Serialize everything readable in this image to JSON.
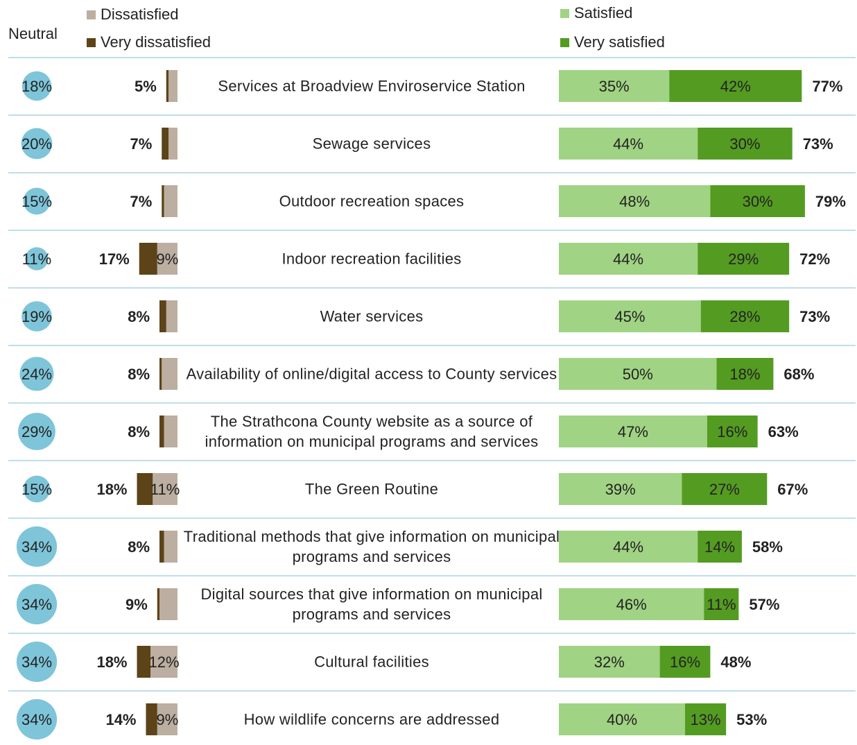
{
  "chart_data": {
    "type": "diverging_bar",
    "categories": [
      "Services at Broadview Enviroservice Station",
      "Sewage services",
      "Outdoor recreation spaces",
      "Indoor recreation facilities",
      "Water services",
      "Availability of online/digital access to County services",
      "The Strathcona County website as a source of information on municipal programs and services",
      "The Green Routine",
      "Traditional methods that give information on municipal programs and services",
      "Digital sources that give information on municipal programs and services",
      "Cultural facilities",
      "How wildlife concerns are addressed"
    ],
    "series": [
      {
        "name": "Neutral",
        "color": "#7ec5d9",
        "values": [
          18,
          20,
          15,
          11,
          19,
          24,
          29,
          15,
          34,
          34,
          34,
          34
        ],
        "value_labels": [
          "18%",
          "20%",
          "15%",
          "11%",
          "19%",
          "24%",
          "29%",
          "15%",
          "34%",
          "34%",
          "34%",
          "34%"
        ]
      },
      {
        "name": "Dissatisfied",
        "color": "#bcaea0",
        "values": [
          4,
          4,
          6,
          9,
          5,
          7,
          6,
          11,
          6,
          8,
          12,
          9
        ],
        "value_labels": [
          null,
          null,
          null,
          "9%",
          null,
          null,
          null,
          "11%",
          null,
          null,
          "12%",
          "9%"
        ]
      },
      {
        "name": "Very dissatisfied",
        "color": "#5c4318",
        "values": [
          1,
          3,
          1,
          8,
          3,
          1,
          2,
          7,
          2,
          1,
          6,
          5
        ]
      },
      {
        "name": "Satisfied",
        "color": "#a0d383",
        "values": [
          35,
          44,
          48,
          44,
          45,
          50,
          47,
          39,
          44,
          46,
          32,
          40
        ],
        "value_labels": [
          "35%",
          "44%",
          "48%",
          "44%",
          "45%",
          "50%",
          "47%",
          "39%",
          "44%",
          "46%",
          "32%",
          "40%"
        ]
      },
      {
        "name": "Very satisfied",
        "color": "#549b22",
        "values": [
          42,
          30,
          30,
          29,
          28,
          18,
          16,
          27,
          14,
          11,
          16,
          13
        ],
        "value_labels": [
          "42%",
          "30%",
          "30%",
          "29%",
          "28%",
          "18%",
          "16%",
          "27%",
          "14%",
          "11%",
          "16%",
          "13%"
        ]
      }
    ],
    "dissatisfied_totals": {
      "values": [
        5,
        7,
        7,
        17,
        8,
        8,
        8,
        18,
        8,
        9,
        18,
        14
      ],
      "value_labels": [
        "5%",
        "7%",
        "7%",
        "17%",
        "8%",
        "8%",
        "8%",
        "18%",
        "8%",
        "9%",
        "18%",
        "14%"
      ]
    },
    "satisfied_totals": {
      "values": [
        77,
        73,
        79,
        72,
        73,
        68,
        63,
        67,
        58,
        57,
        48,
        53
      ],
      "value_labels": [
        "77%",
        "73%",
        "79%",
        "72%",
        "73%",
        "68%",
        "63%",
        "67%",
        "58%",
        "57%",
        "48%",
        "53%"
      ]
    }
  }
}
